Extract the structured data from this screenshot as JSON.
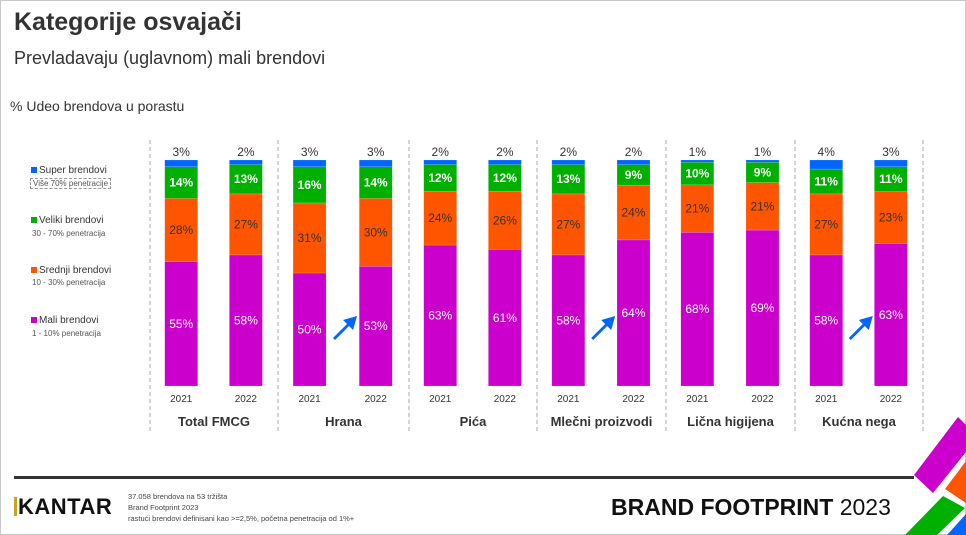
{
  "header": {
    "title": "Kategorije osvajači",
    "subtitle": "Prevladavaju (uglavnom) mali brendovi",
    "y_label": "% Udeo brendova u porastu"
  },
  "legend": [
    {
      "label": "Super brendovi",
      "sub": "Više 70% penetracije",
      "color": "#0066ff"
    },
    {
      "label": "Veliki brendovi",
      "sub": "30 - 70% penetracija",
      "color": "#00b000"
    },
    {
      "label": "Srednji brendovi",
      "sub": "10 - 30% penetracija",
      "color": "#ff5500"
    },
    {
      "label": "Mali brendovi",
      "sub": "1 - 10% penetracija",
      "color": "#cc00cc"
    }
  ],
  "chart_data": {
    "type": "bar",
    "stacked": true,
    "title": "Kategorije osvajači",
    "ylabel": "% Udeo brendova u porastu",
    "ylim": [
      0,
      100
    ],
    "groups": [
      "Total FMCG",
      "Hrana",
      "Pića",
      "Mlečni proizvodi",
      "Lična higijena",
      "Kućna nega"
    ],
    "years": [
      "2021",
      "2022"
    ],
    "series": [
      {
        "name": "Mali brendovi",
        "color": "#cc00cc",
        "values": [
          [
            55,
            58
          ],
          [
            50,
            53
          ],
          [
            63,
            61
          ],
          [
            58,
            64
          ],
          [
            68,
            69
          ],
          [
            58,
            63
          ]
        ]
      },
      {
        "name": "Srednji brendovi",
        "color": "#ff5500",
        "values": [
          [
            28,
            27
          ],
          [
            31,
            30
          ],
          [
            24,
            26
          ],
          [
            27,
            24
          ],
          [
            21,
            21
          ],
          [
            27,
            23
          ]
        ]
      },
      {
        "name": "Veliki brendovi",
        "color": "#00b000",
        "values": [
          [
            14,
            13
          ],
          [
            16,
            14
          ],
          [
            12,
            12
          ],
          [
            13,
            9
          ],
          [
            10,
            9
          ],
          [
            11,
            11
          ]
        ]
      },
      {
        "name": "Super brendovi",
        "color": "#0066ff",
        "values": [
          [
            3,
            2
          ],
          [
            3,
            3
          ],
          [
            2,
            2
          ],
          [
            2,
            2
          ],
          [
            1,
            1
          ],
          [
            4,
            3
          ]
        ]
      }
    ],
    "growth_arrows": [
      "Hrana",
      "Mlečni proizvodi",
      "Kućna nega"
    ],
    "grid": false,
    "legend_position": "left"
  },
  "footer": {
    "logo": "KANTAR",
    "notes": [
      "37.058 brendova na 53 tržišta",
      "Brand Footprint  2023",
      "rastući brendovi definisani kao >=2,5%, početna penetracija od 1%+"
    ],
    "brand_bold": "BRAND FOOTPRINT",
    "brand_year": "2023"
  }
}
